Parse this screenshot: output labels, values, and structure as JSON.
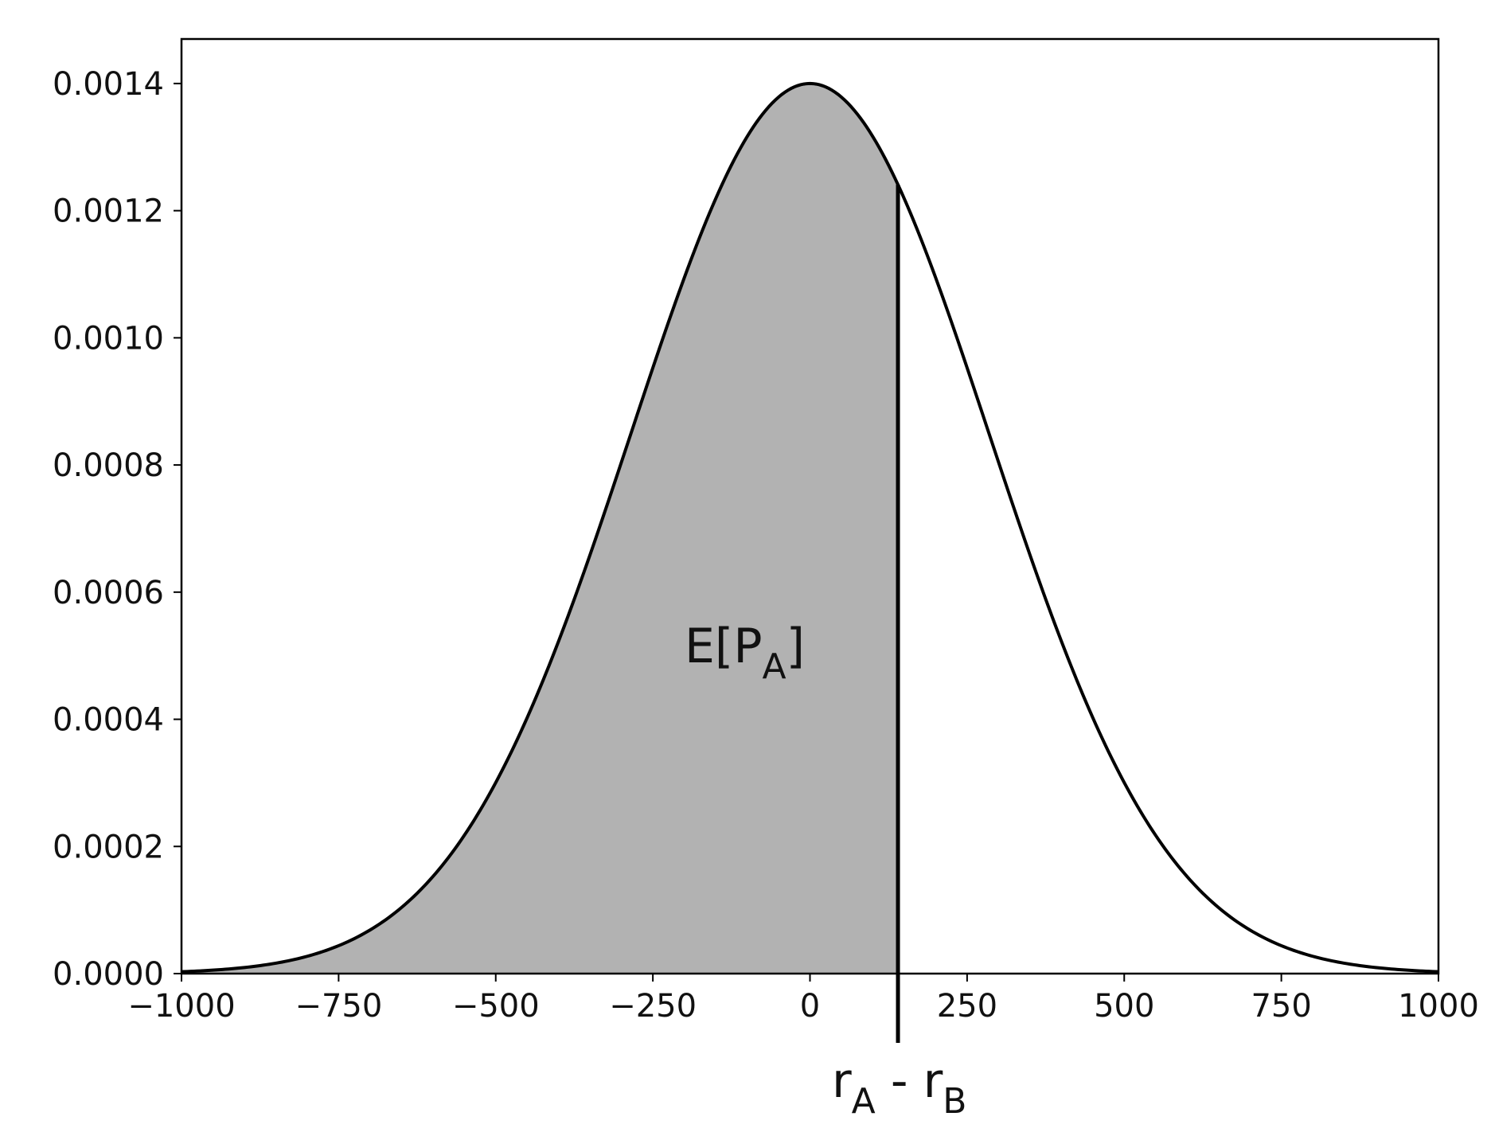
{
  "chart_data": {
    "type": "area",
    "title": "",
    "xlabel": "",
    "ylabel": "",
    "xlim": [
      -1000,
      1000
    ],
    "ylim": [
      0,
      0.00147
    ],
    "grid": false,
    "legend": "none",
    "x_ticks": [
      -1000,
      -750,
      -500,
      -250,
      0,
      250,
      500,
      750,
      1000
    ],
    "x_tick_labels": [
      "−1000",
      "−750",
      "−500",
      "−250",
      "0",
      "250",
      "500",
      "750",
      "1000"
    ],
    "y_ticks": [
      0.0,
      0.0002,
      0.0004,
      0.0006,
      0.0008,
      0.001,
      0.0012,
      0.0014
    ],
    "y_tick_labels": [
      "0.0000",
      "0.0002",
      "0.0004",
      "0.0006",
      "0.0008",
      "0.0010",
      "0.0012",
      "0.0014"
    ],
    "curve": {
      "x": [
        -1000,
        -900,
        -800,
        -700,
        -600,
        -500,
        -400,
        -300,
        -200,
        -100,
        0,
        100,
        140,
        200,
        300,
        400,
        500,
        600,
        700,
        800,
        900,
        1000
      ],
      "y": [
        6e-06,
        1.8e-05,
        4.5e-05,
        0.0001,
        0.000205,
        0.000375,
        0.000595,
        0.00085,
        0.00113,
        0.00133,
        0.0014,
        0.00133,
        0.00123,
        0.00113,
        0.00085,
        0.000595,
        0.000375,
        0.000205,
        0.0001,
        4.5e-05,
        1.8e-05,
        6e-06
      ]
    },
    "shaded_region": {
      "from": -1000,
      "to": 140,
      "color": "#b2b2b2"
    },
    "marker_line": {
      "x": 140
    },
    "curve_color": "#000000",
    "annotations": {
      "area_label": {
        "main": "E[P",
        "sub": "A",
        "close": "]"
      },
      "x_marker_label": {
        "r1": "r",
        "sub1": "A",
        "mid": " - r",
        "sub2": "B"
      }
    }
  }
}
